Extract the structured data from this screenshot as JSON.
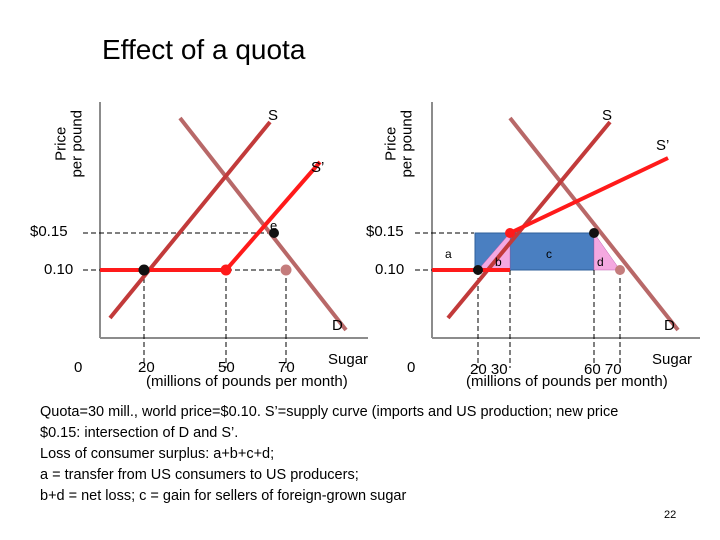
{
  "title": "Effect of a quota",
  "left": {
    "ylabel_line1": "Price",
    "ylabel_line2": "per pound",
    "price_high": "$0.15",
    "price_low": "0.10",
    "supply_label": "S",
    "supply_prime_label": "S’",
    "point_label": "e",
    "demand_label": "D",
    "x_ticks": [
      "0",
      "20",
      "50",
      "70"
    ],
    "xlabel": "Sugar",
    "xunits": "(millions of pounds per month)"
  },
  "right": {
    "ylabel_line1": "Price",
    "ylabel_line2": "per pound",
    "price_high": "$0.15",
    "price_low": "0.10",
    "supply_label": "S",
    "supply_prime_label": "S’",
    "demand_label": "D",
    "areas": [
      "a",
      "b",
      "c",
      "d"
    ],
    "x_ticks": [
      "0",
      "20  30",
      "60  70"
    ],
    "xlabel": "Sugar",
    "xunits": "(millions of pounds per month)"
  },
  "colors": {
    "supply": "#c23a3a",
    "supply_prime": "#ff1a1a",
    "demand": "#b86868",
    "area_blue": "#4a7fc1",
    "area_pink": "#f4a8e0"
  },
  "notes": [
    "Quota=30 mill., world price=$0.10. S’=supply curve (imports and US production; new price",
    "$0.15: intersection of D and S’.",
    "Loss of consumer surplus: a+b+c+d;",
    "a = transfer from US consumers to US producers;",
    "b+d = net loss;   c = gain for sellers of foreign-grown sugar"
  ],
  "page_number": "22"
}
